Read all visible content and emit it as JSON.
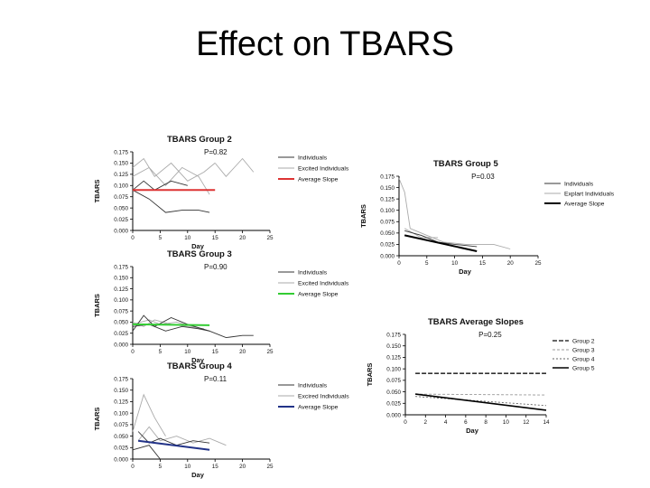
{
  "slide": {
    "title": "Effect on TBARS"
  },
  "chart_data": [
    {
      "type": "line",
      "title": "TBARS Group 2",
      "pvalue": "P=0.82",
      "xlabel": "Day",
      "ylabel": "TBARS",
      "xlim": [
        0,
        25
      ],
      "ylim": [
        0,
        0.175
      ],
      "xticks": [
        "0",
        "5",
        "10",
        "15",
        "20",
        "25"
      ],
      "yticks": [
        "0.000",
        "0.025",
        "0.050",
        "0.075",
        "0.100",
        "0.125",
        "0.150",
        "0.175"
      ],
      "legend": [
        "Individuals",
        "Excited Individuals",
        "Average Slope"
      ],
      "colors": {
        "individuals": "#333333",
        "excluded": "#aaaaaa",
        "average": "#dd3333"
      },
      "series": [
        {
          "kind": "excluded",
          "x": [
            0,
            2,
            4,
            7,
            10,
            13,
            15
          ],
          "y": [
            0.14,
            0.16,
            0.12,
            0.15,
            0.11,
            0.13,
            0.15
          ]
        },
        {
          "kind": "excluded",
          "x": [
            15,
            17,
            20,
            22
          ],
          "y": [
            0.15,
            0.12,
            0.16,
            0.13
          ]
        },
        {
          "kind": "excluded",
          "x": [
            0,
            3,
            6,
            9,
            12,
            14
          ],
          "y": [
            0.12,
            0.14,
            0.1,
            0.14,
            0.12,
            0.08
          ]
        },
        {
          "kind": "individuals",
          "x": [
            0,
            2,
            4,
            7,
            10
          ],
          "y": [
            0.09,
            0.11,
            0.09,
            0.11,
            0.1
          ]
        },
        {
          "kind": "individuals",
          "x": [
            0,
            3,
            6,
            9,
            12,
            14
          ],
          "y": [
            0.09,
            0.07,
            0.04,
            0.045,
            0.045,
            0.04
          ]
        },
        {
          "kind": "average",
          "x": [
            0,
            15
          ],
          "y": [
            0.09,
            0.09
          ]
        }
      ]
    },
    {
      "type": "line",
      "title": "TBARS Group 3",
      "pvalue": "P=0.90",
      "xlabel": "Day",
      "ylabel": "TBARS",
      "xlim": [
        0,
        25
      ],
      "ylim": [
        0,
        0.175
      ],
      "xticks": [
        "0",
        "5",
        "10",
        "15",
        "20",
        "25"
      ],
      "yticks": [
        "0.000",
        "0.025",
        "0.050",
        "0.075",
        "0.100",
        "0.125",
        "0.150",
        "0.175"
      ],
      "legend": [
        "Individuals",
        "Excited Individuals",
        "Average Slope"
      ],
      "colors": {
        "individuals": "#333333",
        "excluded": "#aaaaaa",
        "average": "#33cc33"
      },
      "series": [
        {
          "kind": "excluded",
          "x": [
            0,
            3,
            5,
            8,
            11,
            14
          ],
          "y": [
            0.045,
            0.055,
            0.045,
            0.05,
            0.04,
            0.03
          ]
        },
        {
          "kind": "excluded",
          "x": [
            0,
            2,
            4,
            7,
            10,
            13
          ],
          "y": [
            0.05,
            0.04,
            0.055,
            0.045,
            0.04,
            0.035
          ]
        },
        {
          "kind": "individuals",
          "x": [
            0,
            2,
            4,
            7,
            10,
            14,
            17,
            20,
            22
          ],
          "y": [
            0.03,
            0.065,
            0.04,
            0.06,
            0.045,
            0.03,
            0.015,
            0.02,
            0.02
          ]
        },
        {
          "kind": "individuals",
          "x": [
            0,
            3,
            6,
            9,
            12,
            14
          ],
          "y": [
            0.04,
            0.045,
            0.03,
            0.04,
            0.035,
            0.03
          ]
        },
        {
          "kind": "average",
          "x": [
            0,
            14
          ],
          "y": [
            0.045,
            0.043
          ]
        }
      ]
    },
    {
      "type": "line",
      "title": "TBARS Group 4",
      "pvalue": "P=0.11",
      "xlabel": "Day",
      "ylabel": "TBARS",
      "xlim": [
        0,
        25
      ],
      "ylim": [
        0,
        0.175
      ],
      "xticks": [
        "0",
        "5",
        "10",
        "15",
        "20",
        "25"
      ],
      "yticks": [
        "0.000",
        "0.025",
        "0.050",
        "0.075",
        "0.100",
        "0.125",
        "0.150",
        "0.175"
      ],
      "legend": [
        "Individuals",
        "Excired Individuals",
        "Average Slope"
      ],
      "colors": {
        "individuals": "#333333",
        "excluded": "#aaaaaa",
        "average": "#223388"
      },
      "series": [
        {
          "kind": "excluded",
          "x": [
            0,
            1,
            2,
            4,
            6
          ],
          "y": [
            0.06,
            0.1,
            0.14,
            0.09,
            0.05
          ]
        },
        {
          "kind": "excluded",
          "x": [
            1,
            3,
            5,
            8,
            11,
            14,
            17
          ],
          "y": [
            0.04,
            0.07,
            0.04,
            0.05,
            0.035,
            0.045,
            0.03
          ]
        },
        {
          "kind": "individuals",
          "x": [
            1,
            3,
            5,
            8,
            11,
            14
          ],
          "y": [
            0.06,
            0.035,
            0.045,
            0.03,
            0.04,
            0.035
          ]
        },
        {
          "kind": "individuals",
          "x": [
            0,
            3,
            5
          ],
          "y": [
            0.02,
            0.03,
            0.0
          ]
        },
        {
          "kind": "average",
          "x": [
            1,
            14
          ],
          "y": [
            0.04,
            0.02
          ]
        }
      ]
    },
    {
      "type": "line",
      "title": "TBARS Group 5",
      "pvalue": "P=0.03",
      "xlabel": "Day",
      "ylabel": "TBARS",
      "xlim": [
        0,
        25
      ],
      "ylim": [
        0,
        0.175
      ],
      "xticks": [
        "0",
        "5",
        "10",
        "15",
        "20",
        "25"
      ],
      "yticks": [
        "0.000",
        "0.025",
        "0.050",
        "0.075",
        "0.100",
        "0.125",
        "0.150",
        "0.175"
      ],
      "legend": [
        "Individuals",
        "Explart Individuals",
        "Average Slope"
      ],
      "colors": {
        "individuals": "#333333",
        "excluded": "#aaaaaa",
        "average": "#000000"
      },
      "series": [
        {
          "kind": "excluded",
          "x": [
            0,
            1,
            2,
            5,
            8,
            12,
            17,
            20
          ],
          "y": [
            0.17,
            0.14,
            0.06,
            0.045,
            0.03,
            0.025,
            0.025,
            0.015
          ]
        },
        {
          "kind": "excluded",
          "x": [
            1,
            4,
            7
          ],
          "y": [
            0.06,
            0.04,
            0.04
          ]
        },
        {
          "kind": "individuals",
          "x": [
            1,
            4,
            7,
            10,
            14
          ],
          "y": [
            0.055,
            0.045,
            0.03,
            0.025,
            0.02
          ]
        },
        {
          "kind": "individuals",
          "x": [
            1,
            5,
            10
          ],
          "y": [
            0.045,
            0.035,
            0.02
          ]
        },
        {
          "kind": "average",
          "x": [
            1,
            14
          ],
          "y": [
            0.045,
            0.01
          ]
        }
      ]
    },
    {
      "type": "line",
      "title": "TBARS Average Slopes",
      "pvalue": "P=0.25",
      "xlabel": "Day",
      "ylabel": "TBARS",
      "xlim": [
        0,
        14
      ],
      "ylim": [
        0,
        0.175
      ],
      "xticks": [
        "0",
        "2",
        "4",
        "6",
        "8",
        "10",
        "12",
        "14"
      ],
      "yticks": [
        "0.000",
        "0.025",
        "0.050",
        "0.075",
        "0.100",
        "0.125",
        "0.150",
        "0.175"
      ],
      "legend": [
        "Group 2",
        "Group 3",
        "Group 4",
        "Group 5"
      ],
      "series": [
        {
          "name": "Group 2",
          "x": [
            1,
            14
          ],
          "y": [
            0.09,
            0.09
          ],
          "color": "#333333",
          "dash": "5,2",
          "width": 1.6
        },
        {
          "name": "Group 3",
          "x": [
            1,
            14
          ],
          "y": [
            0.045,
            0.043
          ],
          "color": "#999999",
          "dash": "3,2",
          "width": 0.9
        },
        {
          "name": "Group 4",
          "x": [
            1,
            14
          ],
          "y": [
            0.04,
            0.02
          ],
          "color": "#666666",
          "dash": "2,2",
          "width": 0.9
        },
        {
          "name": "Group 5",
          "x": [
            1,
            14
          ],
          "y": [
            0.045,
            0.01
          ],
          "color": "#000000",
          "dash": "",
          "width": 1.6
        }
      ]
    }
  ]
}
